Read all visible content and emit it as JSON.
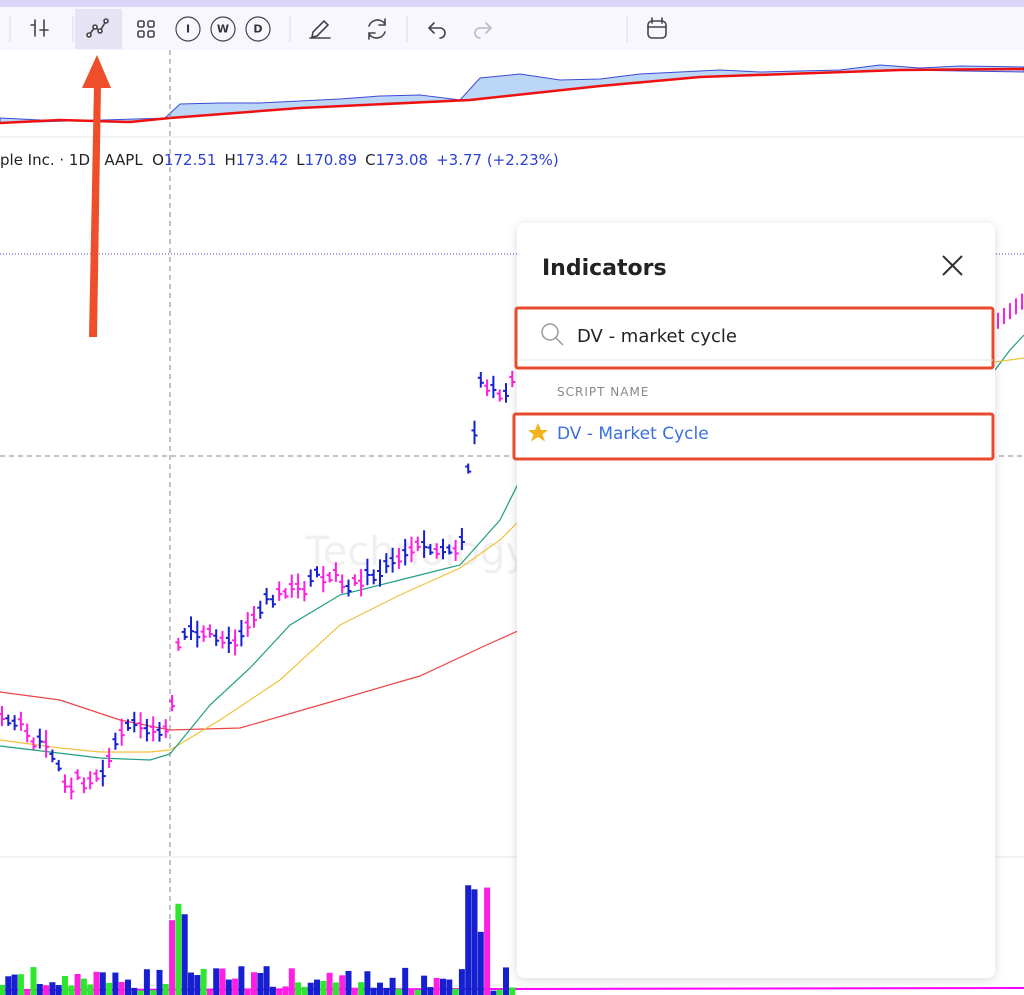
{
  "toolbar": {
    "buttons": [
      "I",
      "W",
      "D"
    ]
  },
  "legend": {
    "symbol": "ple Inc. · 1D · AAPL",
    "ohlc": [
      {
        "key": "O",
        "value": "172.51"
      },
      {
        "key": "H",
        "value": "173.42"
      },
      {
        "key": "L",
        "value": "170.89"
      },
      {
        "key": "C",
        "value": "173.08"
      }
    ],
    "change": "+3.77 (+2.23%)"
  },
  "watermark": "Technology",
  "panel": {
    "title": "Indicators",
    "search": "DV - market cycle",
    "section": "SCRIPT NAME",
    "results": [
      "DV - Market Cycle"
    ]
  }
}
